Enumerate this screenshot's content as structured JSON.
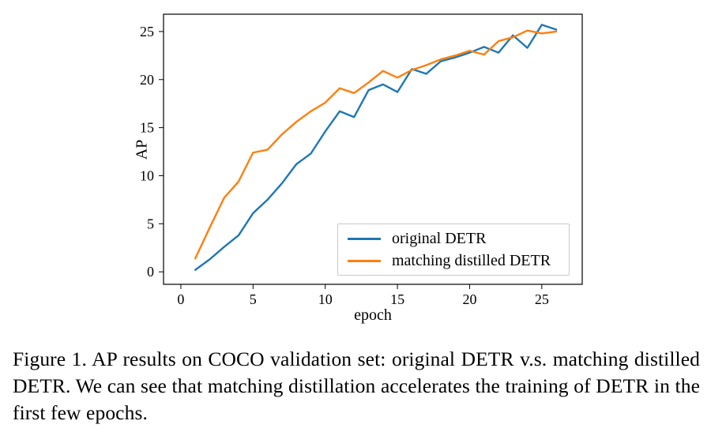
{
  "figure": {
    "caption": "Figure 1. AP results on COCO validation set: original DETR v.s. matching distilled DETR. We can see that matching distillation accelerates the training of DETR in the first few epochs."
  },
  "chart_data": {
    "type": "line",
    "title": "",
    "xlabel": "epoch",
    "ylabel": "AP",
    "xlim": [
      -1.2,
      27.8
    ],
    "ylim": [
      -1.3,
      26.8
    ],
    "xticks": [
      0,
      5,
      10,
      15,
      20,
      25
    ],
    "yticks": [
      0,
      5,
      10,
      15,
      20,
      25
    ],
    "grid": false,
    "legend_position": "lower-right-inside",
    "x": [
      1,
      2,
      3,
      4,
      5,
      6,
      7,
      8,
      9,
      10,
      11,
      12,
      13,
      14,
      15,
      16,
      17,
      18,
      19,
      20,
      21,
      22,
      23,
      24,
      25,
      26
    ],
    "series": [
      {
        "name": "original DETR",
        "color": "#1f77b4",
        "values": [
          0.2,
          1.3,
          2.6,
          3.8,
          6.1,
          7.5,
          9.2,
          11.2,
          12.3,
          14.6,
          16.7,
          16.1,
          18.9,
          19.5,
          18.7,
          21.1,
          20.6,
          21.9,
          22.3,
          22.8,
          23.4,
          22.8,
          24.6,
          23.3,
          25.7,
          25.2
        ]
      },
      {
        "name": "matching distilled DETR",
        "color": "#ff7f0e",
        "values": [
          1.4,
          4.6,
          7.7,
          9.4,
          12.4,
          12.7,
          14.3,
          15.6,
          16.7,
          17.6,
          19.1,
          18.6,
          19.7,
          20.9,
          20.2,
          21.0,
          21.5,
          22.1,
          22.5,
          23.0,
          22.6,
          24.0,
          24.4,
          25.1,
          24.8,
          25.0
        ]
      }
    ]
  }
}
